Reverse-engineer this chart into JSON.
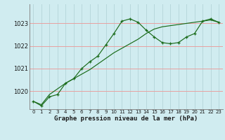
{
  "xlabel": "Graphe pression niveau de la mer (hPa)",
  "bg_color": "#d0ecf0",
  "grid_color_v": "#b8d8dc",
  "grid_color_h": "#e8a0a0",
  "line_color": "#1a6b1a",
  "ylim": [
    1019.2,
    1023.85
  ],
  "xlim": [
    -0.5,
    23.5
  ],
  "yticks": [
    1020,
    1021,
    1022,
    1023
  ],
  "xticks": [
    0,
    1,
    2,
    3,
    4,
    5,
    6,
    7,
    8,
    9,
    10,
    11,
    12,
    13,
    14,
    15,
    16,
    17,
    18,
    19,
    20,
    21,
    22,
    23
  ],
  "series1_x": [
    0,
    1,
    2,
    3,
    4,
    5,
    6,
    7,
    8,
    9,
    10,
    11,
    12,
    13,
    14,
    15,
    16,
    17,
    18,
    19,
    20,
    21,
    22,
    23
  ],
  "series1_y": [
    1019.55,
    1019.35,
    1019.75,
    1019.85,
    1020.35,
    1020.55,
    1021.0,
    1021.3,
    1021.55,
    1022.05,
    1022.55,
    1023.1,
    1023.2,
    1023.05,
    1022.7,
    1022.4,
    1022.15,
    1022.1,
    1022.15,
    1022.4,
    1022.55,
    1023.1,
    1023.2,
    1023.05
  ],
  "series2_x": [
    0,
    1,
    2,
    3,
    4,
    5,
    6,
    7,
    8,
    9,
    10,
    11,
    12,
    13,
    14,
    15,
    16,
    17,
    18,
    19,
    20,
    21,
    22,
    23
  ],
  "series2_y": [
    1019.55,
    1019.4,
    1019.85,
    1020.1,
    1020.35,
    1020.55,
    1020.75,
    1020.95,
    1021.2,
    1021.45,
    1021.7,
    1021.9,
    1022.1,
    1022.3,
    1022.55,
    1022.75,
    1022.85,
    1022.9,
    1022.95,
    1023.0,
    1023.05,
    1023.1,
    1023.15,
    1023.05
  ],
  "xlabel_fontsize": 6.5,
  "ytick_fontsize": 6.0,
  "xtick_fontsize": 5.0
}
